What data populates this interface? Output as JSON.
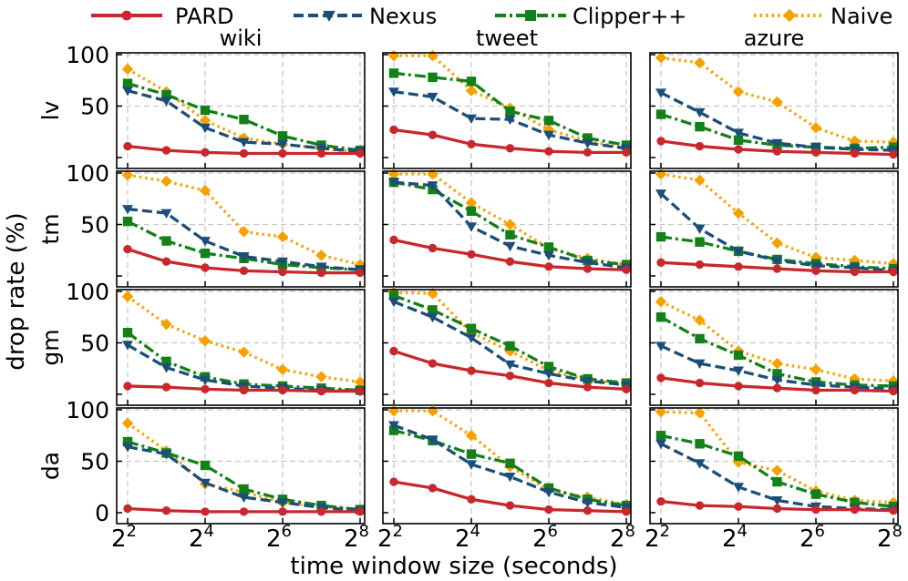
{
  "figure": {
    "ylabel": "drop rate (%)",
    "xlabel": "time window size (seconds)",
    "columns": [
      "wiki",
      "tweet",
      "azure"
    ],
    "rows": [
      "lv",
      "tm",
      "gm",
      "da"
    ],
    "legend": [
      {
        "name": "PARD",
        "color": "#c8282d",
        "marker": "circle",
        "dash": "solid"
      },
      {
        "name": "Nexus",
        "color": "#1b4f7a",
        "marker": "triangle-down",
        "dash": "dashed"
      },
      {
        "name": "Clipper++",
        "color": "#138018",
        "marker": "square",
        "dash": "dashdot"
      },
      {
        "name": "Naive",
        "color": "#f5a200",
        "marker": "diamond",
        "dash": "dotted"
      }
    ],
    "x_ticks": [
      {
        "base": "2",
        "exp": "2",
        "x": 2
      },
      {
        "base": "2",
        "exp": "4",
        "x": 4
      },
      {
        "base": "2",
        "exp": "6",
        "x": 6
      },
      {
        "base": "2",
        "exp": "8",
        "x": 8
      }
    ],
    "y_ticks": [
      0,
      50,
      100
    ]
  },
  "chart_data": [
    {
      "type": "line",
      "title": "wiki",
      "row": "lv",
      "x": [
        2,
        3,
        4,
        5,
        6,
        7,
        8
      ],
      "ylim": [
        0,
        100
      ],
      "xscale": "log2",
      "series": [
        {
          "name": "PARD",
          "values": [
            11,
            7,
            5,
            4,
            4,
            4,
            4
          ]
        },
        {
          "name": "Nexus",
          "values": [
            65,
            55,
            29,
            15,
            13,
            9,
            6
          ]
        },
        {
          "name": "Clipper++",
          "values": [
            72,
            61,
            46,
            37,
            21,
            12,
            7
          ]
        },
        {
          "name": "Naive",
          "values": [
            86,
            64,
            36,
            19,
            13,
            9,
            5
          ]
        }
      ]
    },
    {
      "type": "line",
      "title": "tweet",
      "row": "lv",
      "x": [
        2,
        3,
        4,
        5,
        6,
        7,
        8
      ],
      "ylim": [
        0,
        100
      ],
      "xscale": "log2",
      "series": [
        {
          "name": "PARD",
          "values": [
            27,
            22,
            13,
            9,
            6,
            5,
            5
          ]
        },
        {
          "name": "Nexus",
          "values": [
            64,
            59,
            38,
            37,
            22,
            14,
            9
          ]
        },
        {
          "name": "Clipper++",
          "values": [
            82,
            78,
            74,
            45,
            36,
            19,
            12
          ]
        },
        {
          "name": "Naive",
          "values": [
            99,
            99,
            65,
            48,
            27,
            16,
            9
          ]
        }
      ]
    },
    {
      "type": "line",
      "title": "azure",
      "row": "lv",
      "x": [
        2,
        3,
        4,
        5,
        6,
        7,
        8
      ],
      "ylim": [
        0,
        100
      ],
      "xscale": "log2",
      "series": [
        {
          "name": "PARD",
          "values": [
            16,
            11,
            8,
            6,
            5,
            4,
            3
          ]
        },
        {
          "name": "Nexus",
          "values": [
            63,
            44,
            24,
            14,
            10,
            8,
            7
          ]
        },
        {
          "name": "Clipper++",
          "values": [
            42,
            30,
            17,
            12,
            10,
            9,
            10
          ]
        },
        {
          "name": "Naive",
          "values": [
            97,
            92,
            64,
            54,
            29,
            16,
            15
          ]
        }
      ]
    },
    {
      "type": "line",
      "title": "",
      "row": "tm",
      "x": [
        2,
        3,
        4,
        5,
        6,
        7,
        8
      ],
      "ylim": [
        0,
        100
      ],
      "xscale": "log2",
      "series": [
        {
          "name": "PARD",
          "values": [
            26,
            14,
            8,
            5,
            4,
            3,
            3
          ]
        },
        {
          "name": "Nexus",
          "values": [
            65,
            61,
            34,
            19,
            14,
            9,
            6
          ]
        },
        {
          "name": "Clipper++",
          "values": [
            53,
            34,
            22,
            17,
            11,
            8,
            6
          ]
        },
        {
          "name": "Naive",
          "values": [
            98,
            92,
            83,
            43,
            38,
            20,
            11
          ]
        }
      ]
    },
    {
      "type": "line",
      "title": "",
      "row": "tm",
      "x": [
        2,
        3,
        4,
        5,
        6,
        7,
        8
      ],
      "ylim": [
        0,
        100
      ],
      "xscale": "log2",
      "series": [
        {
          "name": "PARD",
          "values": [
            35,
            27,
            21,
            14,
            9,
            7,
            6
          ]
        },
        {
          "name": "Nexus",
          "values": [
            91,
            88,
            48,
            29,
            20,
            13,
            8
          ]
        },
        {
          "name": "Clipper++",
          "values": [
            91,
            84,
            63,
            40,
            28,
            15,
            11
          ]
        },
        {
          "name": "Naive",
          "values": [
            99,
            99,
            71,
            50,
            27,
            17,
            11
          ]
        }
      ]
    },
    {
      "type": "line",
      "title": "",
      "row": "tm",
      "x": [
        2,
        3,
        4,
        5,
        6,
        7,
        8
      ],
      "ylim": [
        0,
        100
      ],
      "xscale": "log2",
      "series": [
        {
          "name": "PARD",
          "values": [
            13,
            11,
            9,
            7,
            5,
            4,
            4
          ]
        },
        {
          "name": "Nexus",
          "values": [
            80,
            46,
            24,
            15,
            10,
            8,
            5
          ]
        },
        {
          "name": "Clipper++",
          "values": [
            38,
            33,
            24,
            16,
            12,
            9,
            7
          ]
        },
        {
          "name": "Naive",
          "values": [
            99,
            93,
            61,
            32,
            18,
            15,
            12
          ]
        }
      ]
    },
    {
      "type": "line",
      "title": "",
      "row": "gm",
      "x": [
        2,
        3,
        4,
        5,
        6,
        7,
        8
      ],
      "ylim": [
        0,
        100
      ],
      "xscale": "log2",
      "series": [
        {
          "name": "PARD",
          "values": [
            8,
            7,
            5,
            4,
            4,
            3,
            3
          ]
        },
        {
          "name": "Nexus",
          "values": [
            48,
            26,
            14,
            8,
            6,
            4,
            3
          ]
        },
        {
          "name": "Clipper++",
          "values": [
            60,
            32,
            17,
            10,
            8,
            6,
            4
          ]
        },
        {
          "name": "Naive",
          "values": [
            95,
            68,
            52,
            41,
            24,
            17,
            12
          ]
        }
      ]
    },
    {
      "type": "line",
      "title": "",
      "row": "gm",
      "x": [
        2,
        3,
        4,
        5,
        6,
        7,
        8
      ],
      "ylim": [
        0,
        100
      ],
      "xscale": "log2",
      "series": [
        {
          "name": "PARD",
          "values": [
            42,
            30,
            23,
            18,
            11,
            7,
            5
          ]
        },
        {
          "name": "Nexus",
          "values": [
            90,
            75,
            55,
            29,
            20,
            13,
            9
          ]
        },
        {
          "name": "Clipper++",
          "values": [
            96,
            82,
            64,
            47,
            27,
            15,
            11
          ]
        },
        {
          "name": "Naive",
          "values": [
            99,
            98,
            60,
            42,
            23,
            14,
            10
          ]
        }
      ]
    },
    {
      "type": "line",
      "title": "",
      "row": "gm",
      "x": [
        2,
        3,
        4,
        5,
        6,
        7,
        8
      ],
      "ylim": [
        0,
        100
      ],
      "xscale": "log2",
      "series": [
        {
          "name": "PARD",
          "values": [
            16,
            11,
            8,
            6,
            4,
            4,
            3
          ]
        },
        {
          "name": "Nexus",
          "values": [
            47,
            30,
            23,
            14,
            9,
            7,
            5
          ]
        },
        {
          "name": "Clipper++",
          "values": [
            75,
            54,
            38,
            20,
            12,
            9,
            8
          ]
        },
        {
          "name": "Naive",
          "values": [
            90,
            72,
            42,
            30,
            24,
            15,
            13
          ]
        }
      ]
    },
    {
      "type": "line",
      "title": "",
      "row": "da",
      "x": [
        2,
        3,
        4,
        5,
        6,
        7,
        8
      ],
      "ylim": [
        0,
        100
      ],
      "xscale": "log2",
      "series": [
        {
          "name": "PARD",
          "values": [
            4,
            2,
            1,
            1,
            1,
            1,
            1
          ]
        },
        {
          "name": "Nexus",
          "values": [
            64,
            57,
            29,
            15,
            10,
            5,
            2
          ]
        },
        {
          "name": "Clipper++",
          "values": [
            69,
            58,
            46,
            23,
            13,
            7,
            3
          ]
        },
        {
          "name": "Naive",
          "values": [
            87,
            60,
            28,
            20,
            10,
            6,
            3
          ]
        }
      ]
    },
    {
      "type": "line",
      "title": "",
      "row": "da",
      "x": [
        2,
        3,
        4,
        5,
        6,
        7,
        8
      ],
      "ylim": [
        0,
        100
      ],
      "xscale": "log2",
      "series": [
        {
          "name": "PARD",
          "values": [
            30,
            24,
            13,
            7,
            3,
            2,
            1
          ]
        },
        {
          "name": "Nexus",
          "values": [
            85,
            71,
            47,
            35,
            20,
            10,
            5
          ]
        },
        {
          "name": "Clipper++",
          "values": [
            80,
            70,
            57,
            48,
            24,
            13,
            7
          ]
        },
        {
          "name": "Naive",
          "values": [
            99,
            99,
            75,
            45,
            22,
            15,
            8
          ]
        }
      ]
    },
    {
      "type": "line",
      "title": "",
      "row": "da",
      "x": [
        2,
        3,
        4,
        5,
        6,
        7,
        8
      ],
      "ylim": [
        0,
        100
      ],
      "xscale": "log2",
      "series": [
        {
          "name": "PARD",
          "values": [
            11,
            7,
            6,
            4,
            3,
            3,
            2
          ]
        },
        {
          "name": "Nexus",
          "values": [
            67,
            48,
            25,
            12,
            6,
            4,
            3
          ]
        },
        {
          "name": "Clipper++",
          "values": [
            75,
            67,
            55,
            30,
            18,
            10,
            6
          ]
        },
        {
          "name": "Naive",
          "values": [
            98,
            97,
            49,
            41,
            21,
            12,
            10
          ]
        }
      ]
    }
  ]
}
